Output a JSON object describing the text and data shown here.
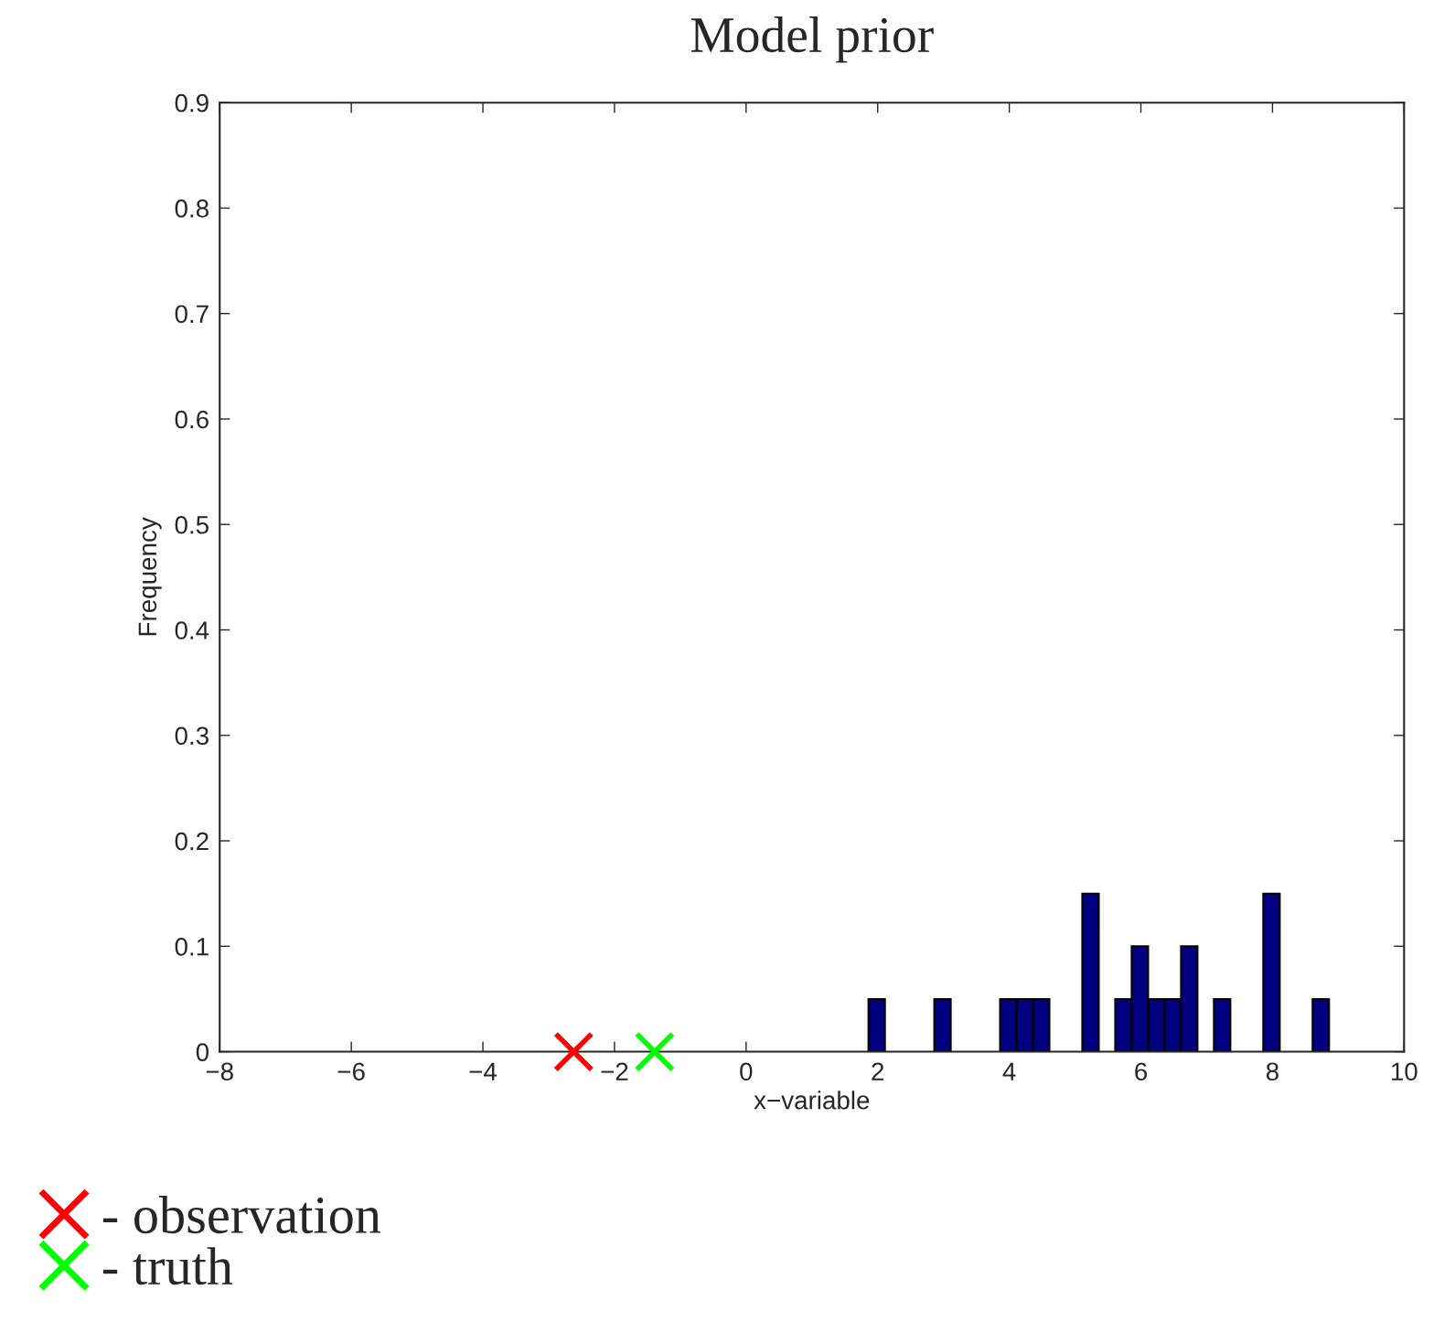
{
  "chart_data": {
    "type": "histogram",
    "title": "Model prior",
    "xlabel": "x−variable",
    "ylabel": "Frequency",
    "bins": [
      1.86,
      2.11,
      2.36,
      2.61,
      2.86,
      3.11,
      3.36,
      3.61,
      3.86,
      4.11,
      4.36,
      4.61,
      4.86,
      5.11,
      5.36,
      5.61,
      5.86,
      6.11,
      6.36,
      6.61,
      6.86,
      7.11,
      7.36,
      7.61,
      7.86,
      8.11,
      8.36,
      8.61,
      8.86
    ],
    "values": [
      0.05,
      0,
      0,
      0,
      0.05,
      0,
      0,
      0,
      0.05,
      0.05,
      0.05,
      0,
      0,
      0.15,
      0,
      0.05,
      0.1,
      0.05,
      0.05,
      0.1,
      0,
      0.05,
      0,
      0,
      0.15,
      0,
      0,
      0.05
    ],
    "color": "#000080",
    "series": [
      {
        "type": "scatter",
        "name": "- observation",
        "color": "#ff0000",
        "x": [
          -2.62
        ],
        "values": [
          0
        ]
      },
      {
        "type": "scatter",
        "name": "- truth",
        "color": "#00ff00",
        "x": [
          -1.39
        ],
        "values": [
          0
        ]
      }
    ],
    "marker": "cross",
    "legend": "bottom left",
    "grid": false,
    "xlim": [
      -8,
      10
    ],
    "xticks": [
      {
        "value": -8,
        "label": "−8"
      },
      {
        "value": -6,
        "label": "−6"
      },
      {
        "value": -4,
        "label": "−4"
      },
      {
        "value": -2,
        "label": "−2"
      },
      0,
      2,
      4,
      6,
      8,
      10
    ],
    "ylim": [
      0,
      0.9
    ],
    "yticks": [
      0,
      0.1,
      0.2,
      0.3,
      0.4,
      0.5,
      0.6,
      0.7,
      0.8,
      0.9
    ]
  }
}
